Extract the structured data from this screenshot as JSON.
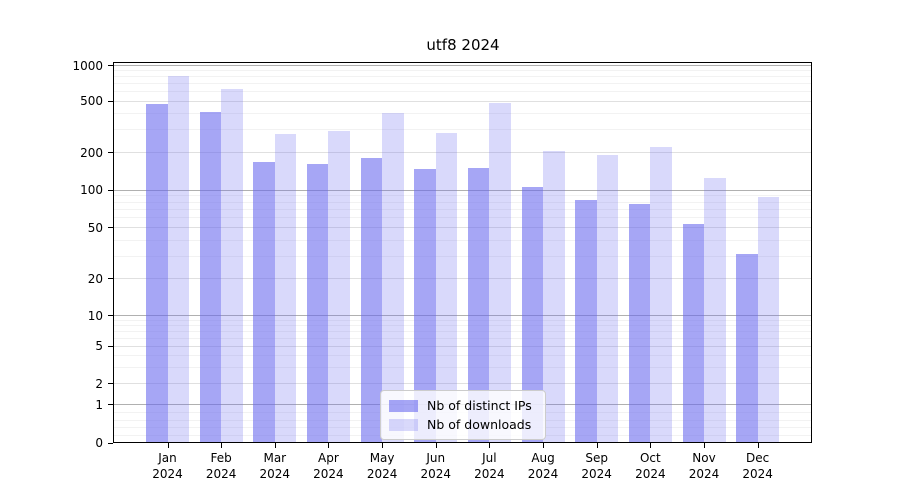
{
  "title": "utf8 2024",
  "chart_data": {
    "type": "bar",
    "title": "utf8 2024",
    "categories": [
      {
        "month": "Jan",
        "year": "2024"
      },
      {
        "month": "Feb",
        "year": "2024"
      },
      {
        "month": "Mar",
        "year": "2024"
      },
      {
        "month": "Apr",
        "year": "2024"
      },
      {
        "month": "May",
        "year": "2024"
      },
      {
        "month": "Jun",
        "year": "2024"
      },
      {
        "month": "Jul",
        "year": "2024"
      },
      {
        "month": "Aug",
        "year": "2024"
      },
      {
        "month": "Sep",
        "year": "2024"
      },
      {
        "month": "Oct",
        "year": "2024"
      },
      {
        "month": "Nov",
        "year": "2024"
      },
      {
        "month": "Dec",
        "year": "2024"
      }
    ],
    "series": [
      {
        "name": "Nb of distinct IPs",
        "color": "#6666ee",
        "alpha": 0.58,
        "values": [
          475,
          410,
          165,
          160,
          180,
          145,
          150,
          105,
          82,
          77,
          53,
          31
        ]
      },
      {
        "name": "Nb of downloads",
        "color": "#6666ee",
        "alpha": 0.25,
        "values": [
          800,
          630,
          275,
          290,
          400,
          280,
          480,
          205,
          190,
          220,
          125,
          88
        ]
      }
    ],
    "yticks": [
      0,
      1,
      2,
      5,
      10,
      20,
      50,
      100,
      200,
      500,
      1000
    ],
    "ylim": [
      0,
      1070
    ],
    "yscale": "log-like",
    "grid": true,
    "legend_position": "lower center"
  }
}
